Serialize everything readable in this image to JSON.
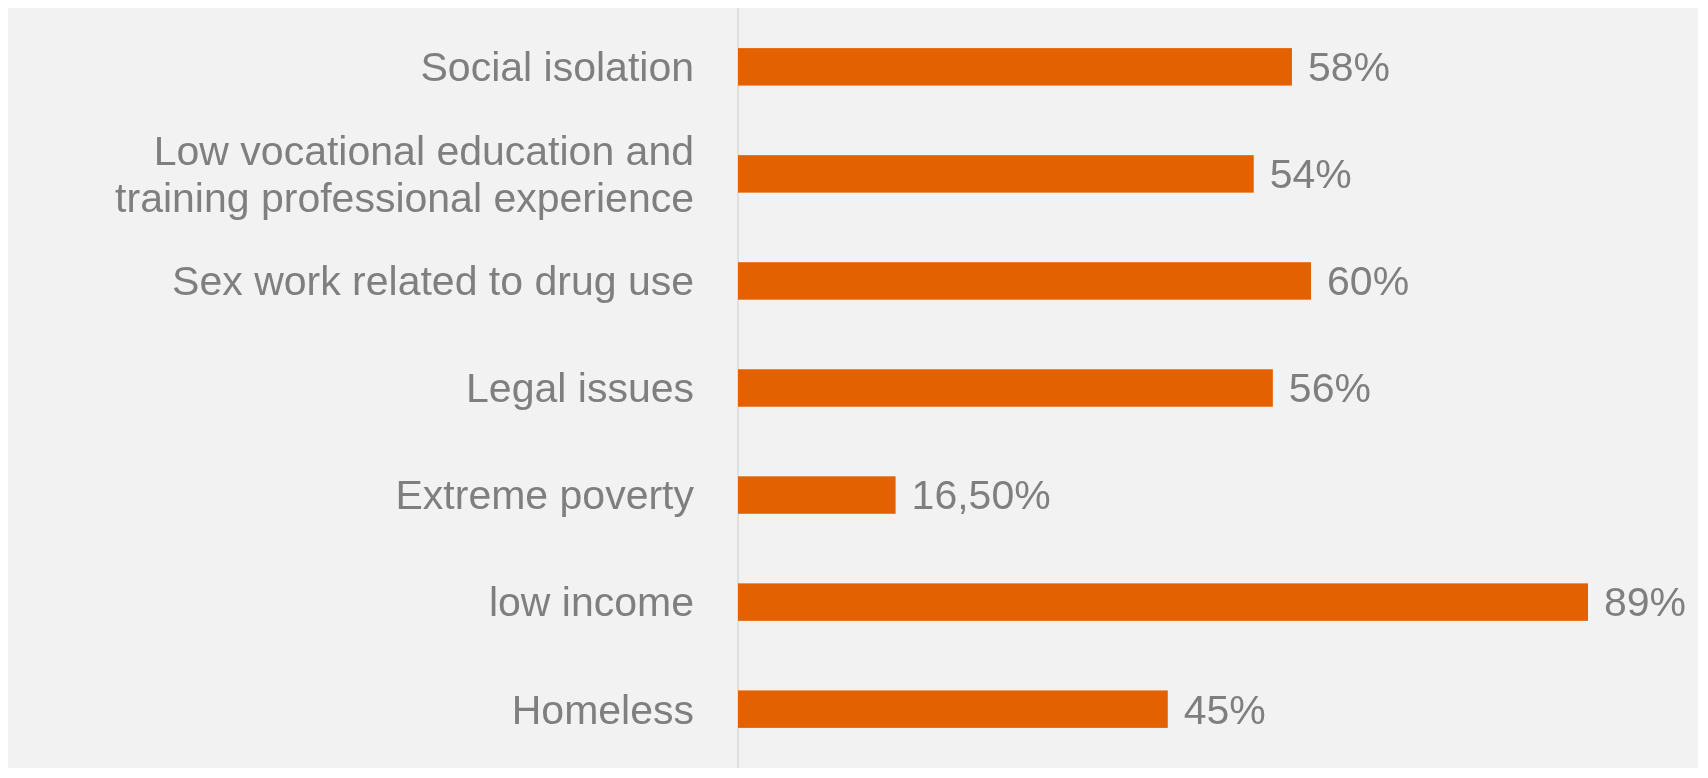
{
  "chart_data": {
    "type": "bar",
    "orientation": "horizontal",
    "categories": [
      "Social isolation",
      "Low vocational education and\ntraining professional experience",
      "Sex work related to drug use",
      "Legal issues",
      "Extreme poverty",
      "low income",
      "Homeless"
    ],
    "values": [
      58,
      54,
      60,
      56,
      16.5,
      89,
      45
    ],
    "value_labels": [
      "58%",
      "54%",
      "60%",
      "56%",
      "16,50%",
      "89%",
      "45%"
    ],
    "color": "#e36100",
    "tick_labels": "y"
  }
}
